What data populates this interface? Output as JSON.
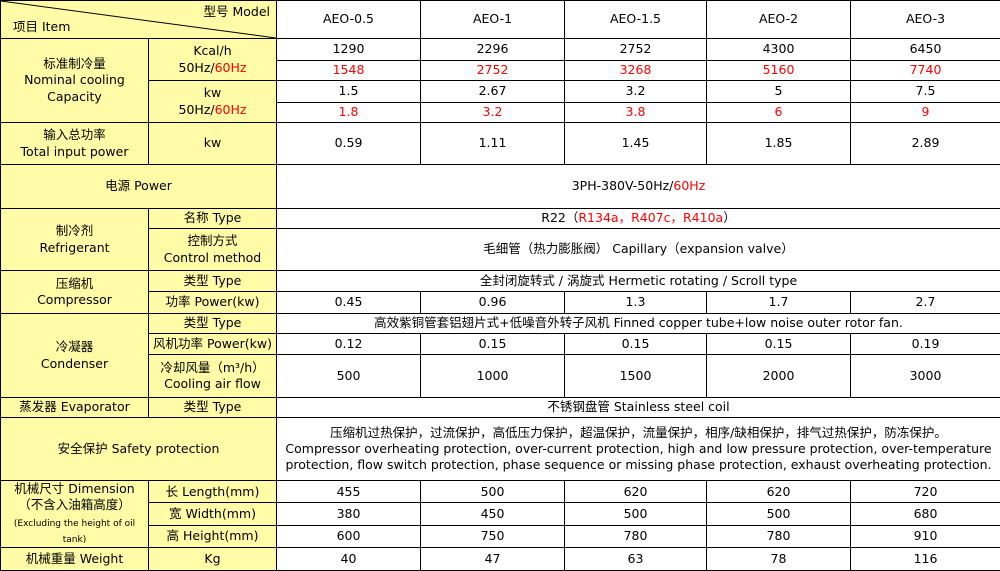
{
  "header": {
    "model_label": "型号  Model",
    "item_label": "项目  Item",
    "models": [
      "AEO-0.5",
      "AEO-1",
      "AEO-1.5",
      "AEO-2",
      "AEO-3"
    ]
  },
  "cooling": {
    "label_cn": "标准制冷量",
    "label_en": "Nominal cooling Capacity",
    "unit1": "Kcal/h",
    "unit2": "kw",
    "freq_50": "50Hz/",
    "freq_60": "60Hz",
    "kcal_50": [
      "1290",
      "2296",
      "2752",
      "4300",
      "6450"
    ],
    "kcal_60": [
      "1548",
      "2752",
      "3268",
      "5160",
      "7740"
    ],
    "kw_50": [
      "1.5",
      "2.67",
      "3.2",
      "5",
      "7.5"
    ],
    "kw_60": [
      "1.8",
      "3.2",
      "3.8",
      "6",
      "9"
    ]
  },
  "input_power": {
    "label_cn": "输入总功率",
    "label_en": "Total input power",
    "unit": "kw",
    "values": [
      "0.59",
      "1.11",
      "1.45",
      "1.85",
      "2.89"
    ]
  },
  "power": {
    "label": "电源  Power",
    "value": "3PH-380V-50Hz/",
    "value_red": "60Hz"
  },
  "refrigerant": {
    "label_cn": "制冷剂",
    "label_en": "Refrigerant",
    "type_label": "名称  Type",
    "type_value": "R22（",
    "type_value_red": "R134a，R407c，R410a",
    "type_value_end": "）",
    "control_label_cn": "控制方式",
    "control_label_en": "Control method",
    "control_value": "毛细管（热力膨胀阀） Capillary（expansion valve）"
  },
  "compressor": {
    "label_cn": "压缩机",
    "label_en": "Compressor",
    "type_label": "类型  Type",
    "type_value": "全封闭旋转式 / 涡旋式  Hermetic rotating / Scroll type",
    "power_label": "功率  Power(kw)",
    "power_values": [
      "0.45",
      "0.96",
      "1.3",
      "1.7",
      "2.7"
    ]
  },
  "condenser": {
    "label": "冷凝器",
    "label_en": "Condenser",
    "type_label": "类型  Type",
    "type_value": "高效紫铜管套铝翅片式+低噪音外转子风机  Finned copper tube+low noise outer rotor fan.",
    "fan_label": "风机功率  Power(kw)",
    "fan_values": [
      "0.12",
      "0.15",
      "0.15",
      "0.15",
      "0.19"
    ],
    "air_label_cn": "冷却风量（m³/h）",
    "air_label_en": "Cooling air flow",
    "air_values": [
      "500",
      "1000",
      "1500",
      "2000",
      "3000"
    ]
  },
  "evaporator": {
    "label": "蒸发器  Evaporator",
    "type_label": "类型  Type",
    "type_value": "不锈钢盘管  Stainless steel coil"
  },
  "safety": {
    "label": "安全保护  Safety protection",
    "line1": "压缩机过热保护，过流保护，高低压力保护，超温保护，流量保护，相序/缺相保护，排气过热保护，防冻保护。",
    "line2": "Compressor overheating protection, over-current protection, high and low pressure protection, over-temperature",
    "line3": "protection, flow switch protection, phase sequence or missing phase protection, exhaust overheating protection."
  },
  "dimension": {
    "label_cn": "机械尺寸 Dimension",
    "label_cn2": "（不含入油箱高度）",
    "label_note": "(Excluding the height of oil tank)",
    "length_label": "长  Length(mm)",
    "length": [
      "455",
      "500",
      "620",
      "620",
      "720"
    ],
    "width_label": "宽  Width(mm)",
    "width": [
      "380",
      "450",
      "500",
      "500",
      "680"
    ],
    "height_label": "高  Height(mm)",
    "height": [
      "600",
      "750",
      "780",
      "780",
      "910"
    ]
  },
  "weight": {
    "label": "机械重量  Weight",
    "unit": "Kg",
    "values": [
      "40",
      "47",
      "63",
      "78",
      "116"
    ]
  },
  "colors": {
    "label_bg": "#fffba6",
    "highlight": "#ff0000",
    "border": "#000000"
  }
}
